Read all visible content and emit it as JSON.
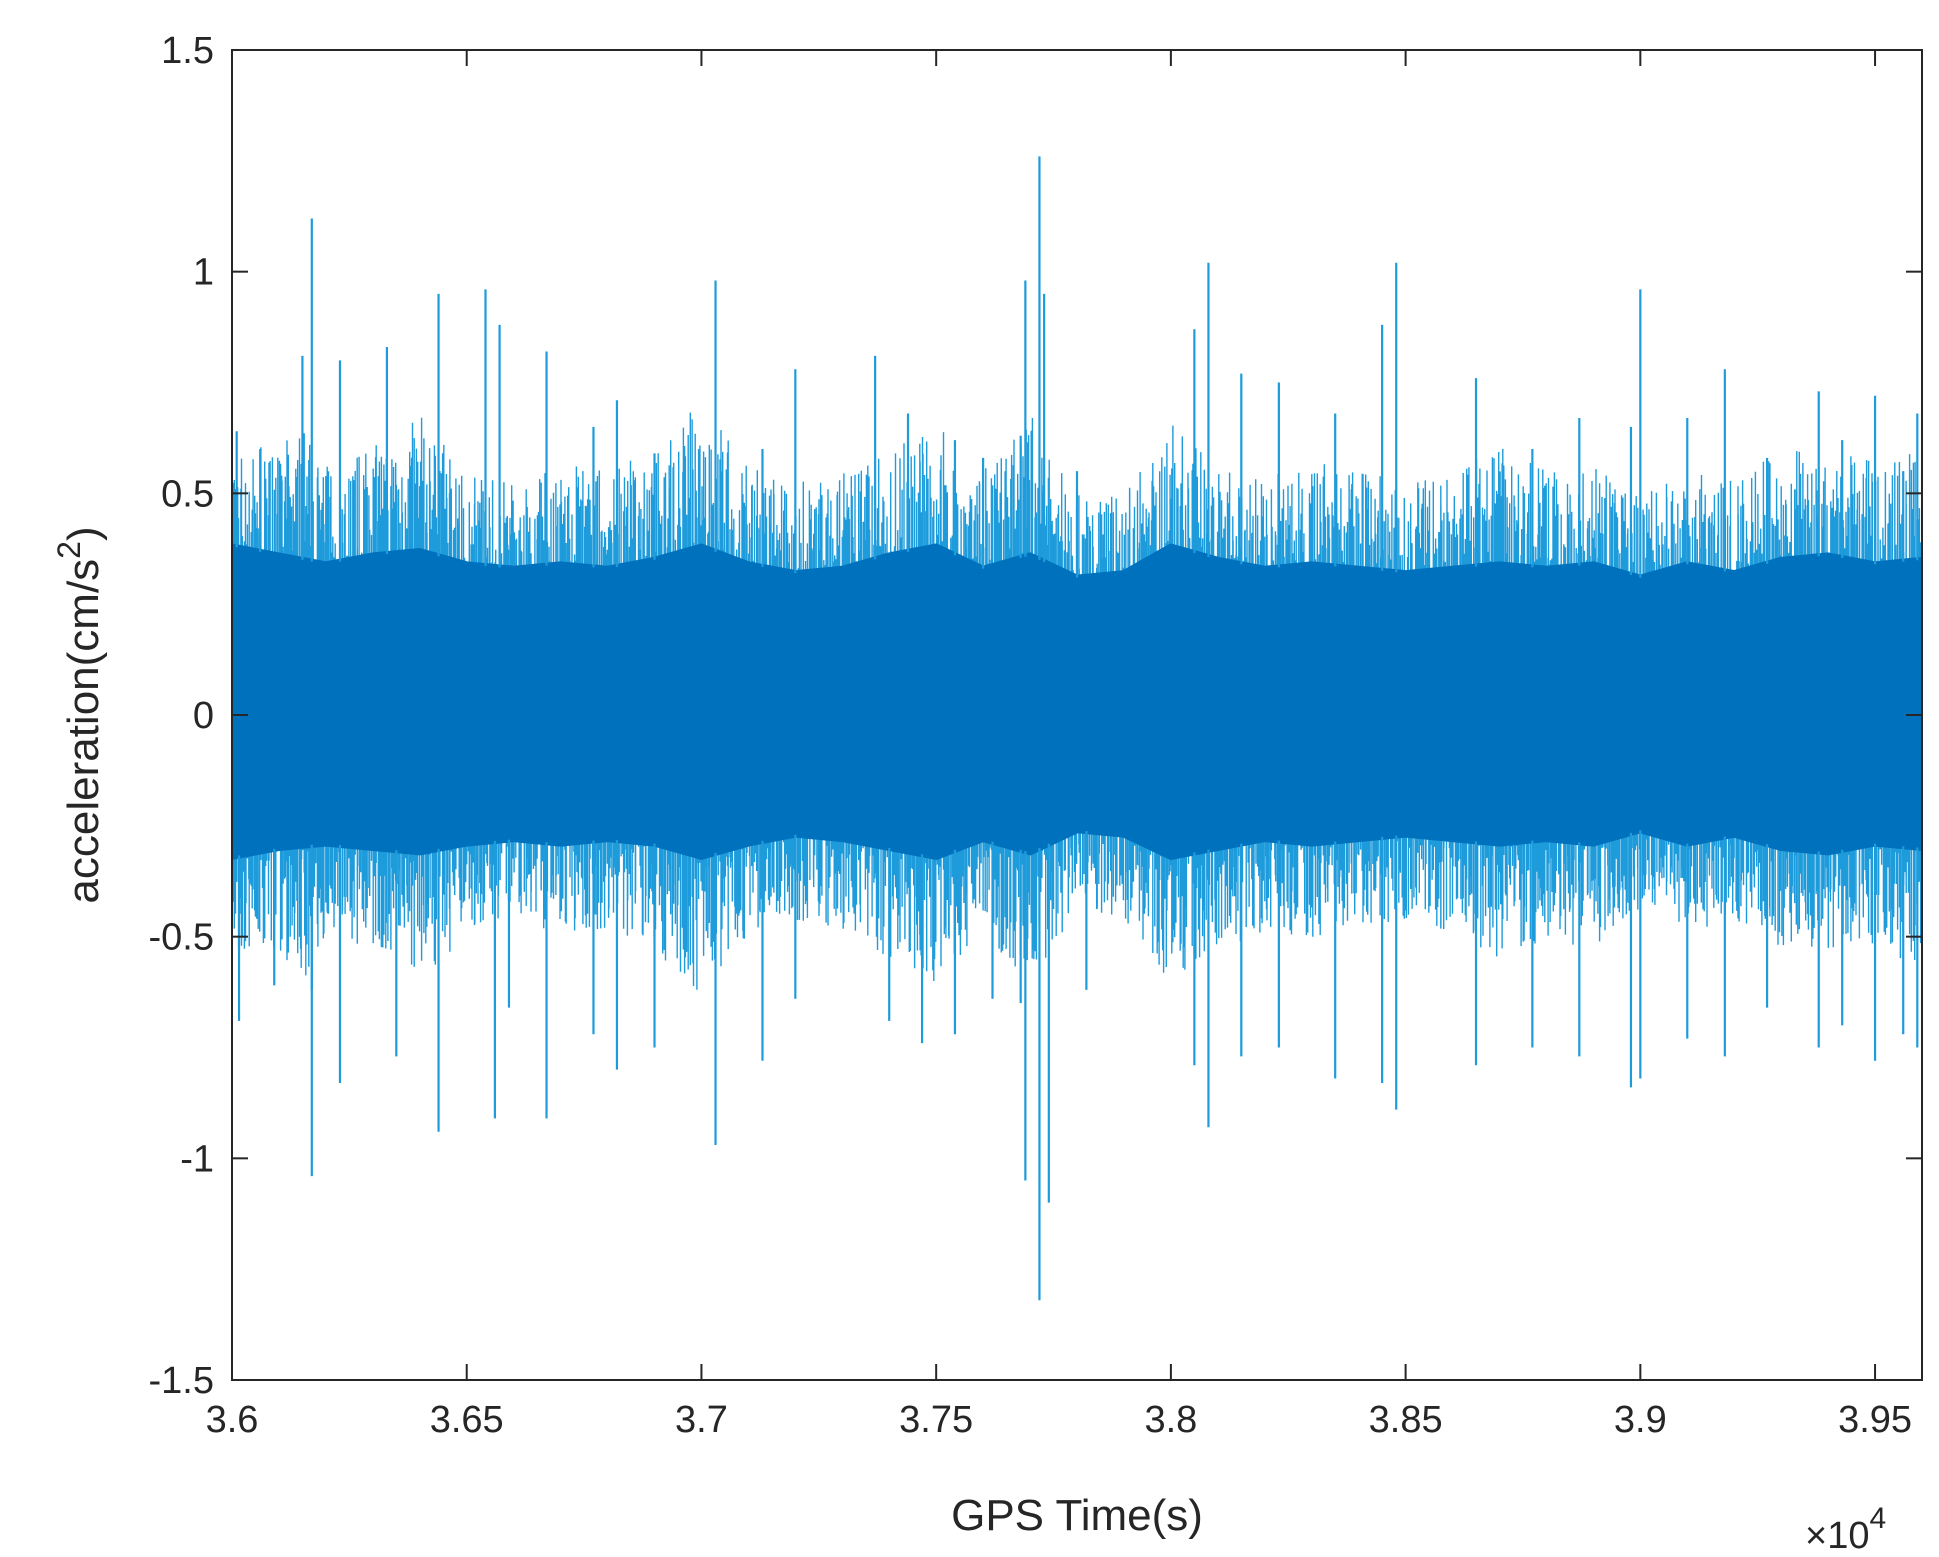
{
  "chart_data": {
    "type": "line",
    "title": "",
    "xlabel": "GPS Time(s)",
    "ylabel_main": "acceleration(cm/s",
    "ylabel_sup": "2",
    "ylabel_close": ")",
    "x_exponent_prefix": "×10",
    "x_exponent_power": "4",
    "x_scale": 10000,
    "xlim": [
      36000,
      39600
    ],
    "ylim": [
      -1.5,
      1.5
    ],
    "xticks": [
      36000,
      36500,
      37000,
      37500,
      38000,
      38500,
      39000,
      39500
    ],
    "xtick_labels": [
      "3.6",
      "3.65",
      "3.7",
      "3.75",
      "3.8",
      "3.85",
      "3.9",
      "3.95"
    ],
    "yticks": [
      -1.5,
      -1,
      -0.5,
      0,
      0.5,
      1,
      1.5
    ],
    "ytick_labels": [
      "-1.5",
      "-1",
      "-0.5",
      "0",
      "0.5",
      "1",
      "1.5"
    ],
    "grid": false,
    "series": [
      {
        "color_dark": "#0072BD",
        "color_light": "#1E9BDB",
        "core_upper": [
          [
            36000,
            0.38
          ],
          [
            36100,
            0.36
          ],
          [
            36200,
            0.34
          ],
          [
            36300,
            0.36
          ],
          [
            36400,
            0.37
          ],
          [
            36500,
            0.34
          ],
          [
            36600,
            0.33
          ],
          [
            36700,
            0.34
          ],
          [
            36800,
            0.33
          ],
          [
            36900,
            0.35
          ],
          [
            37000,
            0.38
          ],
          [
            37100,
            0.34
          ],
          [
            37200,
            0.32
          ],
          [
            37300,
            0.33
          ],
          [
            37400,
            0.36
          ],
          [
            37500,
            0.38
          ],
          [
            37600,
            0.33
          ],
          [
            37700,
            0.36
          ],
          [
            37800,
            0.31
          ],
          [
            37900,
            0.32
          ],
          [
            38000,
            0.38
          ],
          [
            38100,
            0.35
          ],
          [
            38200,
            0.33
          ],
          [
            38300,
            0.34
          ],
          [
            38400,
            0.33
          ],
          [
            38500,
            0.32
          ],
          [
            38600,
            0.33
          ],
          [
            38700,
            0.34
          ],
          [
            38800,
            0.33
          ],
          [
            38900,
            0.34
          ],
          [
            39000,
            0.31
          ],
          [
            39100,
            0.34
          ],
          [
            39200,
            0.32
          ],
          [
            39300,
            0.35
          ],
          [
            39400,
            0.36
          ],
          [
            39500,
            0.34
          ],
          [
            39600,
            0.35
          ]
        ],
        "core_lower": [
          [
            36000,
            -0.32
          ],
          [
            36100,
            -0.3
          ],
          [
            36200,
            -0.29
          ],
          [
            36300,
            -0.3
          ],
          [
            36400,
            -0.31
          ],
          [
            36500,
            -0.29
          ],
          [
            36600,
            -0.28
          ],
          [
            36700,
            -0.29
          ],
          [
            36800,
            -0.28
          ],
          [
            36900,
            -0.29
          ],
          [
            37000,
            -0.32
          ],
          [
            37100,
            -0.29
          ],
          [
            37200,
            -0.27
          ],
          [
            37300,
            -0.28
          ],
          [
            37400,
            -0.3
          ],
          [
            37500,
            -0.32
          ],
          [
            37600,
            -0.28
          ],
          [
            37700,
            -0.31
          ],
          [
            37800,
            -0.26
          ],
          [
            37900,
            -0.27
          ],
          [
            38000,
            -0.32
          ],
          [
            38100,
            -0.3
          ],
          [
            38200,
            -0.28
          ],
          [
            38300,
            -0.29
          ],
          [
            38400,
            -0.28
          ],
          [
            38500,
            -0.27
          ],
          [
            38600,
            -0.28
          ],
          [
            38700,
            -0.29
          ],
          [
            38800,
            -0.28
          ],
          [
            38900,
            -0.29
          ],
          [
            39000,
            -0.26
          ],
          [
            39100,
            -0.29
          ],
          [
            39200,
            -0.27
          ],
          [
            39300,
            -0.3
          ],
          [
            39400,
            -0.31
          ],
          [
            39500,
            -0.29
          ],
          [
            39600,
            -0.3
          ]
        ],
        "envelope_upper": [
          [
            36000,
            0.55
          ],
          [
            36100,
            0.55
          ],
          [
            36150,
            0.6
          ],
          [
            36200,
            0.52
          ],
          [
            36300,
            0.55
          ],
          [
            36400,
            0.62
          ],
          [
            36500,
            0.5
          ],
          [
            36600,
            0.48
          ],
          [
            36700,
            0.52
          ],
          [
            36800,
            0.5
          ],
          [
            36900,
            0.55
          ],
          [
            37000,
            0.65
          ],
          [
            37100,
            0.52
          ],
          [
            37200,
            0.48
          ],
          [
            37300,
            0.5
          ],
          [
            37400,
            0.55
          ],
          [
            37500,
            0.6
          ],
          [
            37600,
            0.5
          ],
          [
            37700,
            0.62
          ],
          [
            37800,
            0.45
          ],
          [
            37900,
            0.46
          ],
          [
            38000,
            0.6
          ],
          [
            38100,
            0.52
          ],
          [
            38200,
            0.5
          ],
          [
            38300,
            0.52
          ],
          [
            38400,
            0.5
          ],
          [
            38500,
            0.48
          ],
          [
            38600,
            0.5
          ],
          [
            38700,
            0.55
          ],
          [
            38800,
            0.5
          ],
          [
            38900,
            0.52
          ],
          [
            39000,
            0.45
          ],
          [
            39100,
            0.5
          ],
          [
            39200,
            0.48
          ],
          [
            39300,
            0.55
          ],
          [
            39400,
            0.55
          ],
          [
            39500,
            0.52
          ],
          [
            39600,
            0.55
          ]
        ],
        "envelope_lower": [
          [
            36000,
            -0.5
          ],
          [
            36100,
            -0.48
          ],
          [
            36150,
            -0.55
          ],
          [
            36200,
            -0.45
          ],
          [
            36300,
            -0.5
          ],
          [
            36400,
            -0.55
          ],
          [
            36500,
            -0.45
          ],
          [
            36600,
            -0.42
          ],
          [
            36700,
            -0.46
          ],
          [
            36800,
            -0.44
          ],
          [
            36900,
            -0.48
          ],
          [
            37000,
            -0.58
          ],
          [
            37100,
            -0.45
          ],
          [
            37200,
            -0.42
          ],
          [
            37300,
            -0.45
          ],
          [
            37400,
            -0.5
          ],
          [
            37500,
            -0.55
          ],
          [
            37600,
            -0.45
          ],
          [
            37700,
            -0.55
          ],
          [
            37800,
            -0.4
          ],
          [
            37900,
            -0.42
          ],
          [
            38000,
            -0.55
          ],
          [
            38100,
            -0.48
          ],
          [
            38200,
            -0.45
          ],
          [
            38300,
            -0.46
          ],
          [
            38400,
            -0.44
          ],
          [
            38500,
            -0.42
          ],
          [
            38600,
            -0.45
          ],
          [
            38700,
            -0.5
          ],
          [
            38800,
            -0.46
          ],
          [
            38900,
            -0.48
          ],
          [
            39000,
            -0.4
          ],
          [
            39100,
            -0.45
          ],
          [
            39200,
            -0.42
          ],
          [
            39300,
            -0.48
          ],
          [
            39400,
            -0.5
          ],
          [
            39500,
            -0.48
          ],
          [
            39600,
            -0.52
          ]
        ],
        "spikes": [
          [
            36010,
            0.64
          ],
          [
            36015,
            -0.69
          ],
          [
            36060,
            0.6
          ],
          [
            36090,
            -0.61
          ],
          [
            36150,
            0.81
          ],
          [
            36170,
            -0.62
          ],
          [
            36170,
            1.12
          ],
          [
            36170,
            -1.04
          ],
          [
            36230,
            0.8
          ],
          [
            36230,
            -0.83
          ],
          [
            36330,
            0.83
          ],
          [
            36350,
            -0.77
          ],
          [
            36440,
            0.95
          ],
          [
            36440,
            -0.94
          ],
          [
            36540,
            0.96
          ],
          [
            36560,
            -0.91
          ],
          [
            36570,
            0.88
          ],
          [
            36590,
            -0.66
          ],
          [
            36670,
            0.82
          ],
          [
            36670,
            -0.91
          ],
          [
            36770,
            0.65
          ],
          [
            36770,
            -0.72
          ],
          [
            36820,
            0.71
          ],
          [
            36820,
            -0.8
          ],
          [
            36900,
            0.59
          ],
          [
            36900,
            -0.75
          ],
          [
            37030,
            0.98
          ],
          [
            37030,
            -0.97
          ],
          [
            37130,
            0.6
          ],
          [
            37130,
            -0.78
          ],
          [
            37200,
            0.78
          ],
          [
            37200,
            -0.64
          ],
          [
            37370,
            0.81
          ],
          [
            37400,
            -0.69
          ],
          [
            37440,
            0.68
          ],
          [
            37470,
            -0.74
          ],
          [
            37540,
            0.62
          ],
          [
            37540,
            -0.72
          ],
          [
            37600,
            0.58
          ],
          [
            37620,
            -0.64
          ],
          [
            37680,
            0.63
          ],
          [
            37680,
            -0.65
          ],
          [
            37690,
            0.98
          ],
          [
            37690,
            -1.05
          ],
          [
            37720,
            1.26
          ],
          [
            37720,
            -1.32
          ],
          [
            37730,
            0.95
          ],
          [
            37740,
            -1.1
          ],
          [
            37800,
            0.55
          ],
          [
            37820,
            -0.62
          ],
          [
            38050,
            0.87
          ],
          [
            38050,
            -0.79
          ],
          [
            38080,
            1.02
          ],
          [
            38080,
            -0.93
          ],
          [
            38150,
            0.77
          ],
          [
            38150,
            -0.77
          ],
          [
            38230,
            0.75
          ],
          [
            38230,
            -0.75
          ],
          [
            38350,
            0.68
          ],
          [
            38350,
            -0.82
          ],
          [
            38450,
            0.88
          ],
          [
            38450,
            -0.83
          ],
          [
            38480,
            1.02
          ],
          [
            38480,
            -0.89
          ],
          [
            38650,
            0.76
          ],
          [
            38650,
            -0.79
          ],
          [
            38770,
            0.6
          ],
          [
            38770,
            -0.75
          ],
          [
            38870,
            0.67
          ],
          [
            38870,
            -0.77
          ],
          [
            38980,
            0.65
          ],
          [
            38980,
            -0.84
          ],
          [
            39000,
            0.96
          ],
          [
            39000,
            -0.82
          ],
          [
            39100,
            0.67
          ],
          [
            39100,
            -0.73
          ],
          [
            39180,
            0.78
          ],
          [
            39180,
            -0.77
          ],
          [
            39270,
            0.58
          ],
          [
            39270,
            -0.66
          ],
          [
            39380,
            0.73
          ],
          [
            39380,
            -0.75
          ],
          [
            39430,
            0.62
          ],
          [
            39430,
            -0.7
          ],
          [
            39500,
            0.72
          ],
          [
            39500,
            -0.78
          ],
          [
            39560,
            0.55
          ],
          [
            39560,
            -0.72
          ],
          [
            39590,
            0.68
          ],
          [
            39590,
            -0.75
          ]
        ]
      }
    ]
  }
}
